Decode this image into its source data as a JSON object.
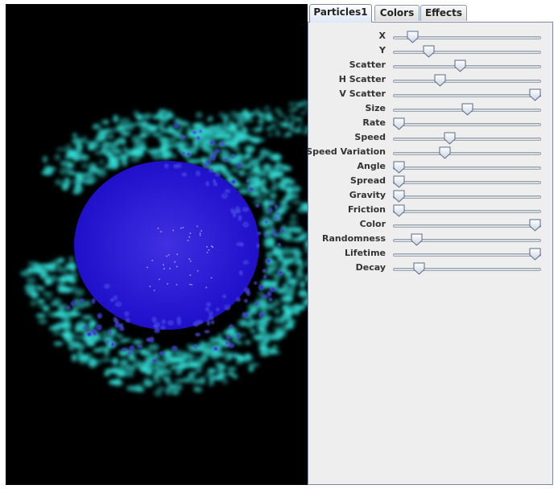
{
  "tabs": [
    {
      "label": "Particles1",
      "active": true
    },
    {
      "label": "Colors",
      "active": false
    },
    {
      "label": "Effects",
      "active": false
    }
  ],
  "sliders": [
    {
      "label": "X",
      "value": 0.1
    },
    {
      "label": "Y",
      "value": 0.22
    },
    {
      "label": "Scatter",
      "value": 0.45
    },
    {
      "label": "H Scatter",
      "value": 0.3
    },
    {
      "label": "V Scatter",
      "value": 1.0
    },
    {
      "label": "Size",
      "value": 0.5
    },
    {
      "label": "Rate",
      "value": 0.0
    },
    {
      "label": "Speed",
      "value": 0.37
    },
    {
      "label": "Speed Variation",
      "value": 0.34
    },
    {
      "label": "Angle",
      "value": 0.0
    },
    {
      "label": "Spread",
      "value": 0.0
    },
    {
      "label": "Gravity",
      "value": 0.0
    },
    {
      "label": "Friction",
      "value": 0.0
    },
    {
      "label": "Color",
      "value": 1.0
    },
    {
      "label": "Randomness",
      "value": 0.13
    },
    {
      "label": "Lifetime",
      "value": 1.0
    },
    {
      "label": "Decay",
      "value": 0.15
    }
  ],
  "colors": {
    "background": "#000000",
    "particle_outer": "#33e0d8",
    "particle_inner": "#2a18d0",
    "panel": "#eeeeee"
  }
}
